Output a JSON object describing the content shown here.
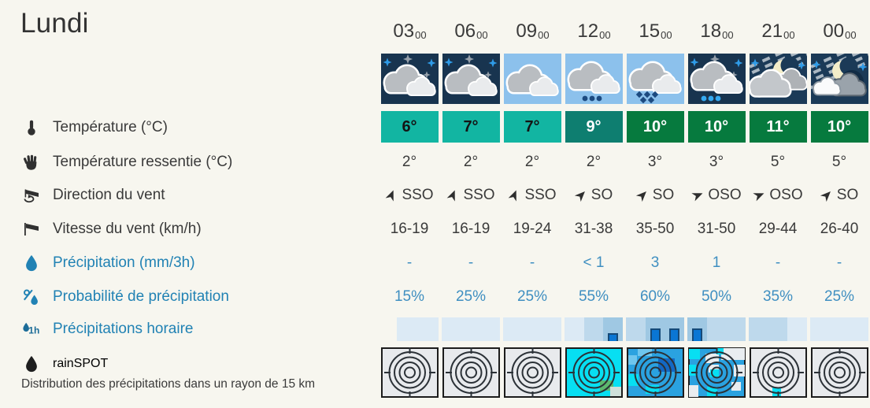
{
  "page": {
    "title": "Lundi",
    "background": "#f7f6ef"
  },
  "colors": {
    "label_blue": "#2182b4",
    "value_blue": "#3f8fc1",
    "text_dark": "#3a3a3a",
    "temp_teal": "#12b5a2",
    "temp_dark_teal": "#0e7e70",
    "temp_dark_green": "#067a3e",
    "hourly_shade_light": "#dceaf5",
    "hourly_shade_medium": "#bed9ec",
    "hourly_shade_dark": "#9fc8e3",
    "hourly_bar": "#0a76d4",
    "hourly_bar_border": "#164a78",
    "night_sky": "#18344f",
    "day_sky": "#8cc1ec"
  },
  "rows": {
    "temperature": {
      "label": "Température (°C)",
      "icon": "thermometer-icon"
    },
    "feels_like": {
      "label": "Température ressentie (°C)",
      "icon": "hand-icon"
    },
    "wind_direction": {
      "label": "Direction du vent",
      "icon": "wind-direction-icon"
    },
    "wind_speed": {
      "label": "Vitesse du vent (km/h)",
      "icon": "windsock-icon"
    },
    "precipitation": {
      "label": "Précipitation (mm/3h)",
      "icon": "droplet-icon"
    },
    "precip_probability": {
      "label": "Probabilité de précipitation",
      "icon": "percent-droplet-icon"
    },
    "precip_hourly": {
      "label": "Précipitations horaire",
      "icon": "droplet-1h-icon"
    },
    "rainspot": {
      "label": "rainSPOT",
      "icon": "black-droplet-icon",
      "note": "Distribution des précipitations dans un rayon de 15 km"
    }
  },
  "columns": [
    {
      "time": "03",
      "time_sup": "00",
      "icon": "night-cloudy-icon",
      "temp": {
        "value": "6°",
        "bg": "#12b5a2",
        "fg": "#141414"
      },
      "feels": "2°",
      "wind": {
        "dir": "SSO",
        "deg": 22.5
      },
      "speed": "16-19",
      "precip": "-",
      "prob": "15%",
      "hourly": {
        "cells": [
          "#dceaf5",
          "#dceaf5",
          "#dceaf5"
        ],
        "bars": [
          0,
          0,
          0
        ]
      },
      "rainspot": "no-precipitation"
    },
    {
      "time": "06",
      "time_sup": "00",
      "icon": "night-cloudy-icon",
      "temp": {
        "value": "7°",
        "bg": "#12b5a2",
        "fg": "#141414"
      },
      "feels": "2°",
      "wind": {
        "dir": "SSO",
        "deg": 22.5
      },
      "speed": "16-19",
      "precip": "-",
      "prob": "25%",
      "hourly": {
        "cells": [
          "#dceaf5",
          "#dceaf5",
          "#dceaf5"
        ],
        "bars": [
          0,
          0,
          0
        ]
      },
      "rainspot": "no-precipitation"
    },
    {
      "time": "09",
      "time_sup": "00",
      "icon": "day-cloudy-icon",
      "temp": {
        "value": "7°",
        "bg": "#12b5a2",
        "fg": "#141414"
      },
      "feels": "2°",
      "wind": {
        "dir": "SSO",
        "deg": 22.5
      },
      "speed": "19-24",
      "precip": "-",
      "prob": "25%",
      "hourly": {
        "cells": [
          "#dceaf5",
          "#dceaf5",
          "#dceaf5"
        ],
        "bars": [
          0,
          0,
          0
        ]
      },
      "rainspot": "no-precipitation"
    },
    {
      "time": "12",
      "time_sup": "00",
      "icon": "day-light-rain-icon",
      "temp": {
        "value": "9°",
        "bg": "#0e7e70",
        "fg": "#ffffff"
      },
      "feels": "2°",
      "wind": {
        "dir": "SO",
        "deg": 45
      },
      "speed": "31-38",
      "precip": "< 1",
      "prob": "55%",
      "hourly": {
        "cells": [
          "#dceaf5",
          "#bed9ec",
          "#9fc8e3"
        ],
        "bars": [
          0,
          0,
          10
        ]
      },
      "rainspot": "light-rain-patches"
    },
    {
      "time": "15",
      "time_sup": "00",
      "icon": "day-rain-icon",
      "temp": {
        "value": "10°",
        "bg": "#067a3e",
        "fg": "#ffffff"
      },
      "feels": "3°",
      "wind": {
        "dir": "SO",
        "deg": 45
      },
      "speed": "35-50",
      "precip": "3",
      "prob": "60%",
      "hourly": {
        "cells": [
          "#bed9ec",
          "#9fc8e3",
          "#9fc8e3"
        ],
        "bars": [
          0,
          16,
          16
        ]
      },
      "rainspot": "widespread-rain"
    },
    {
      "time": "18",
      "time_sup": "00",
      "icon": "night-light-rain-icon",
      "temp": {
        "value": "10°",
        "bg": "#067a3e",
        "fg": "#ffffff"
      },
      "feels": "3°",
      "wind": {
        "dir": "OSO",
        "deg": 67.5
      },
      "speed": "31-50",
      "precip": "1",
      "prob": "50%",
      "hourly": {
        "cells": [
          "#9fc8e3",
          "#bed9ec",
          "#bed9ec"
        ],
        "bars": [
          16,
          0,
          0
        ]
      },
      "rainspot": "scattered-rain"
    },
    {
      "time": "21",
      "time_sup": "00",
      "icon": "moon-clouds-cirrus-icon",
      "temp": {
        "value": "11°",
        "bg": "#067a3e",
        "fg": "#ffffff"
      },
      "feels": "5°",
      "wind": {
        "dir": "OSO",
        "deg": 67.5
      },
      "speed": "29-44",
      "precip": "-",
      "prob": "35%",
      "hourly": {
        "cells": [
          "#bed9ec",
          "#bed9ec",
          "#dceaf5"
        ],
        "bars": [
          0,
          0,
          0
        ]
      },
      "rainspot": "trace-precipitation"
    },
    {
      "time": "00",
      "time_sup": "00",
      "icon": "moon-clouds-cirrus-icon",
      "temp": {
        "value": "10°",
        "bg": "#067a3e",
        "fg": "#ffffff"
      },
      "feels": "5°",
      "wind": {
        "dir": "SO",
        "deg": 45
      },
      "speed": "26-40",
      "precip": "-",
      "prob": "25%",
      "hourly": {
        "cells": [
          "#dceaf5",
          "#dceaf5",
          "#dceaf5"
        ],
        "bars": [
          0,
          0,
          0
        ]
      },
      "rainspot": "no-precipitation"
    }
  ]
}
